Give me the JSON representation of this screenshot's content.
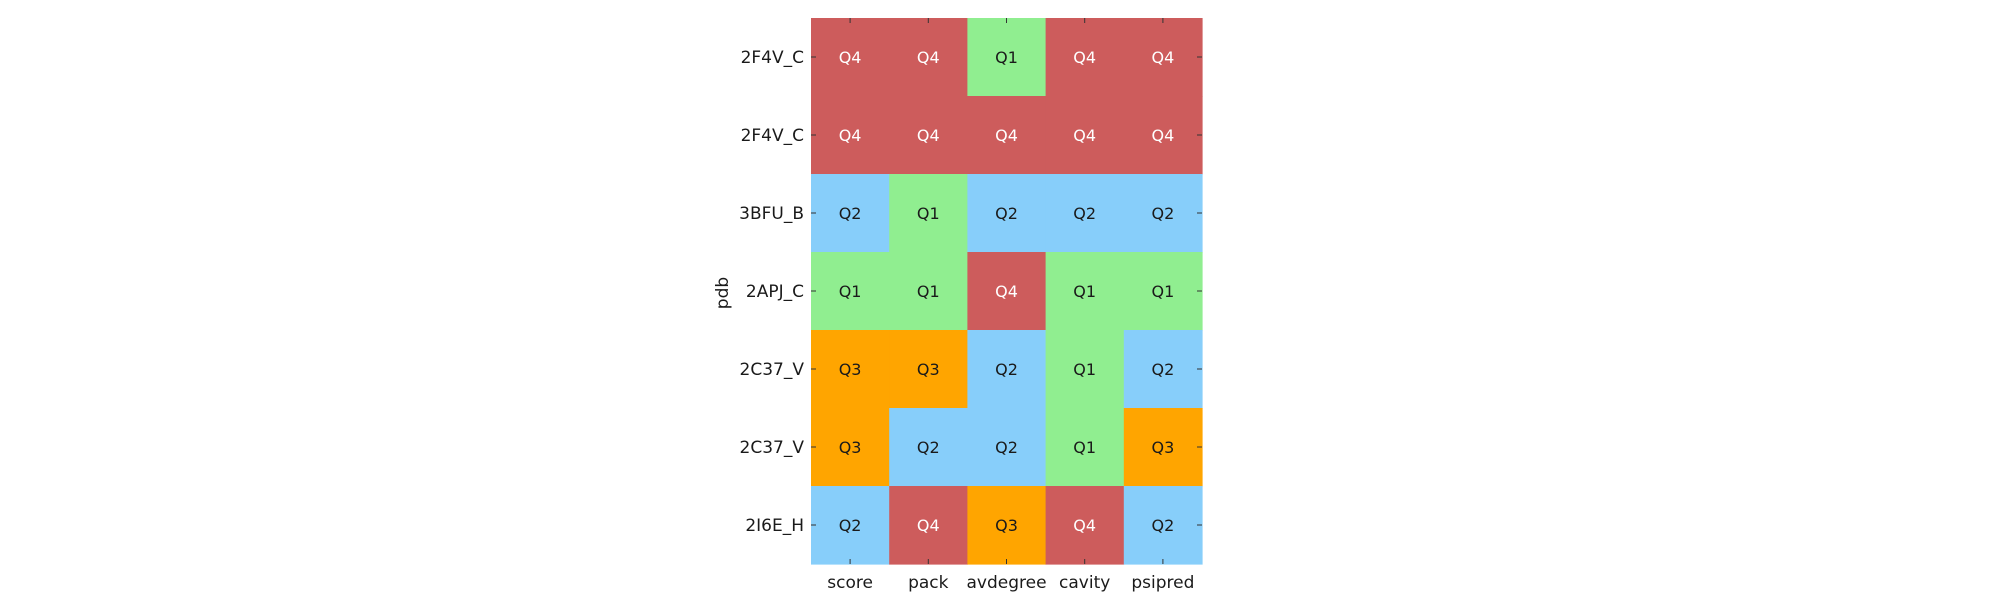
{
  "chart_data": {
    "type": "heatmap",
    "ylabel": "pdb",
    "xlabel": "",
    "columns": [
      "score",
      "pack",
      "avdegree",
      "cavity",
      "psipred"
    ],
    "rows": [
      "2F4V_C",
      "2F4V_C",
      "3BFU_B",
      "2APJ_C",
      "2C37_V",
      "2C37_V",
      "2I6E_H"
    ],
    "cells": [
      [
        "Q4",
        "Q4",
        "Q1",
        "Q4",
        "Q4"
      ],
      [
        "Q4",
        "Q4",
        "Q4",
        "Q4",
        "Q4"
      ],
      [
        "Q2",
        "Q1",
        "Q2",
        "Q2",
        "Q2"
      ],
      [
        "Q1",
        "Q1",
        "Q4",
        "Q1",
        "Q1"
      ],
      [
        "Q3",
        "Q3",
        "Q2",
        "Q1",
        "Q2"
      ],
      [
        "Q3",
        "Q2",
        "Q2",
        "Q1",
        "Q3"
      ],
      [
        "Q2",
        "Q4",
        "Q3",
        "Q4",
        "Q2"
      ]
    ],
    "category_colors": {
      "Q1": "#90EE90",
      "Q2": "#87CEFA",
      "Q3": "#FFA500",
      "Q4": "#CD5C5C"
    },
    "category_text_colors": {
      "Q1": "#1a1a1a",
      "Q2": "#1a1a1a",
      "Q3": "#1a1a1a",
      "Q4": "#ffffff"
    },
    "grid": false,
    "legend": "none"
  }
}
